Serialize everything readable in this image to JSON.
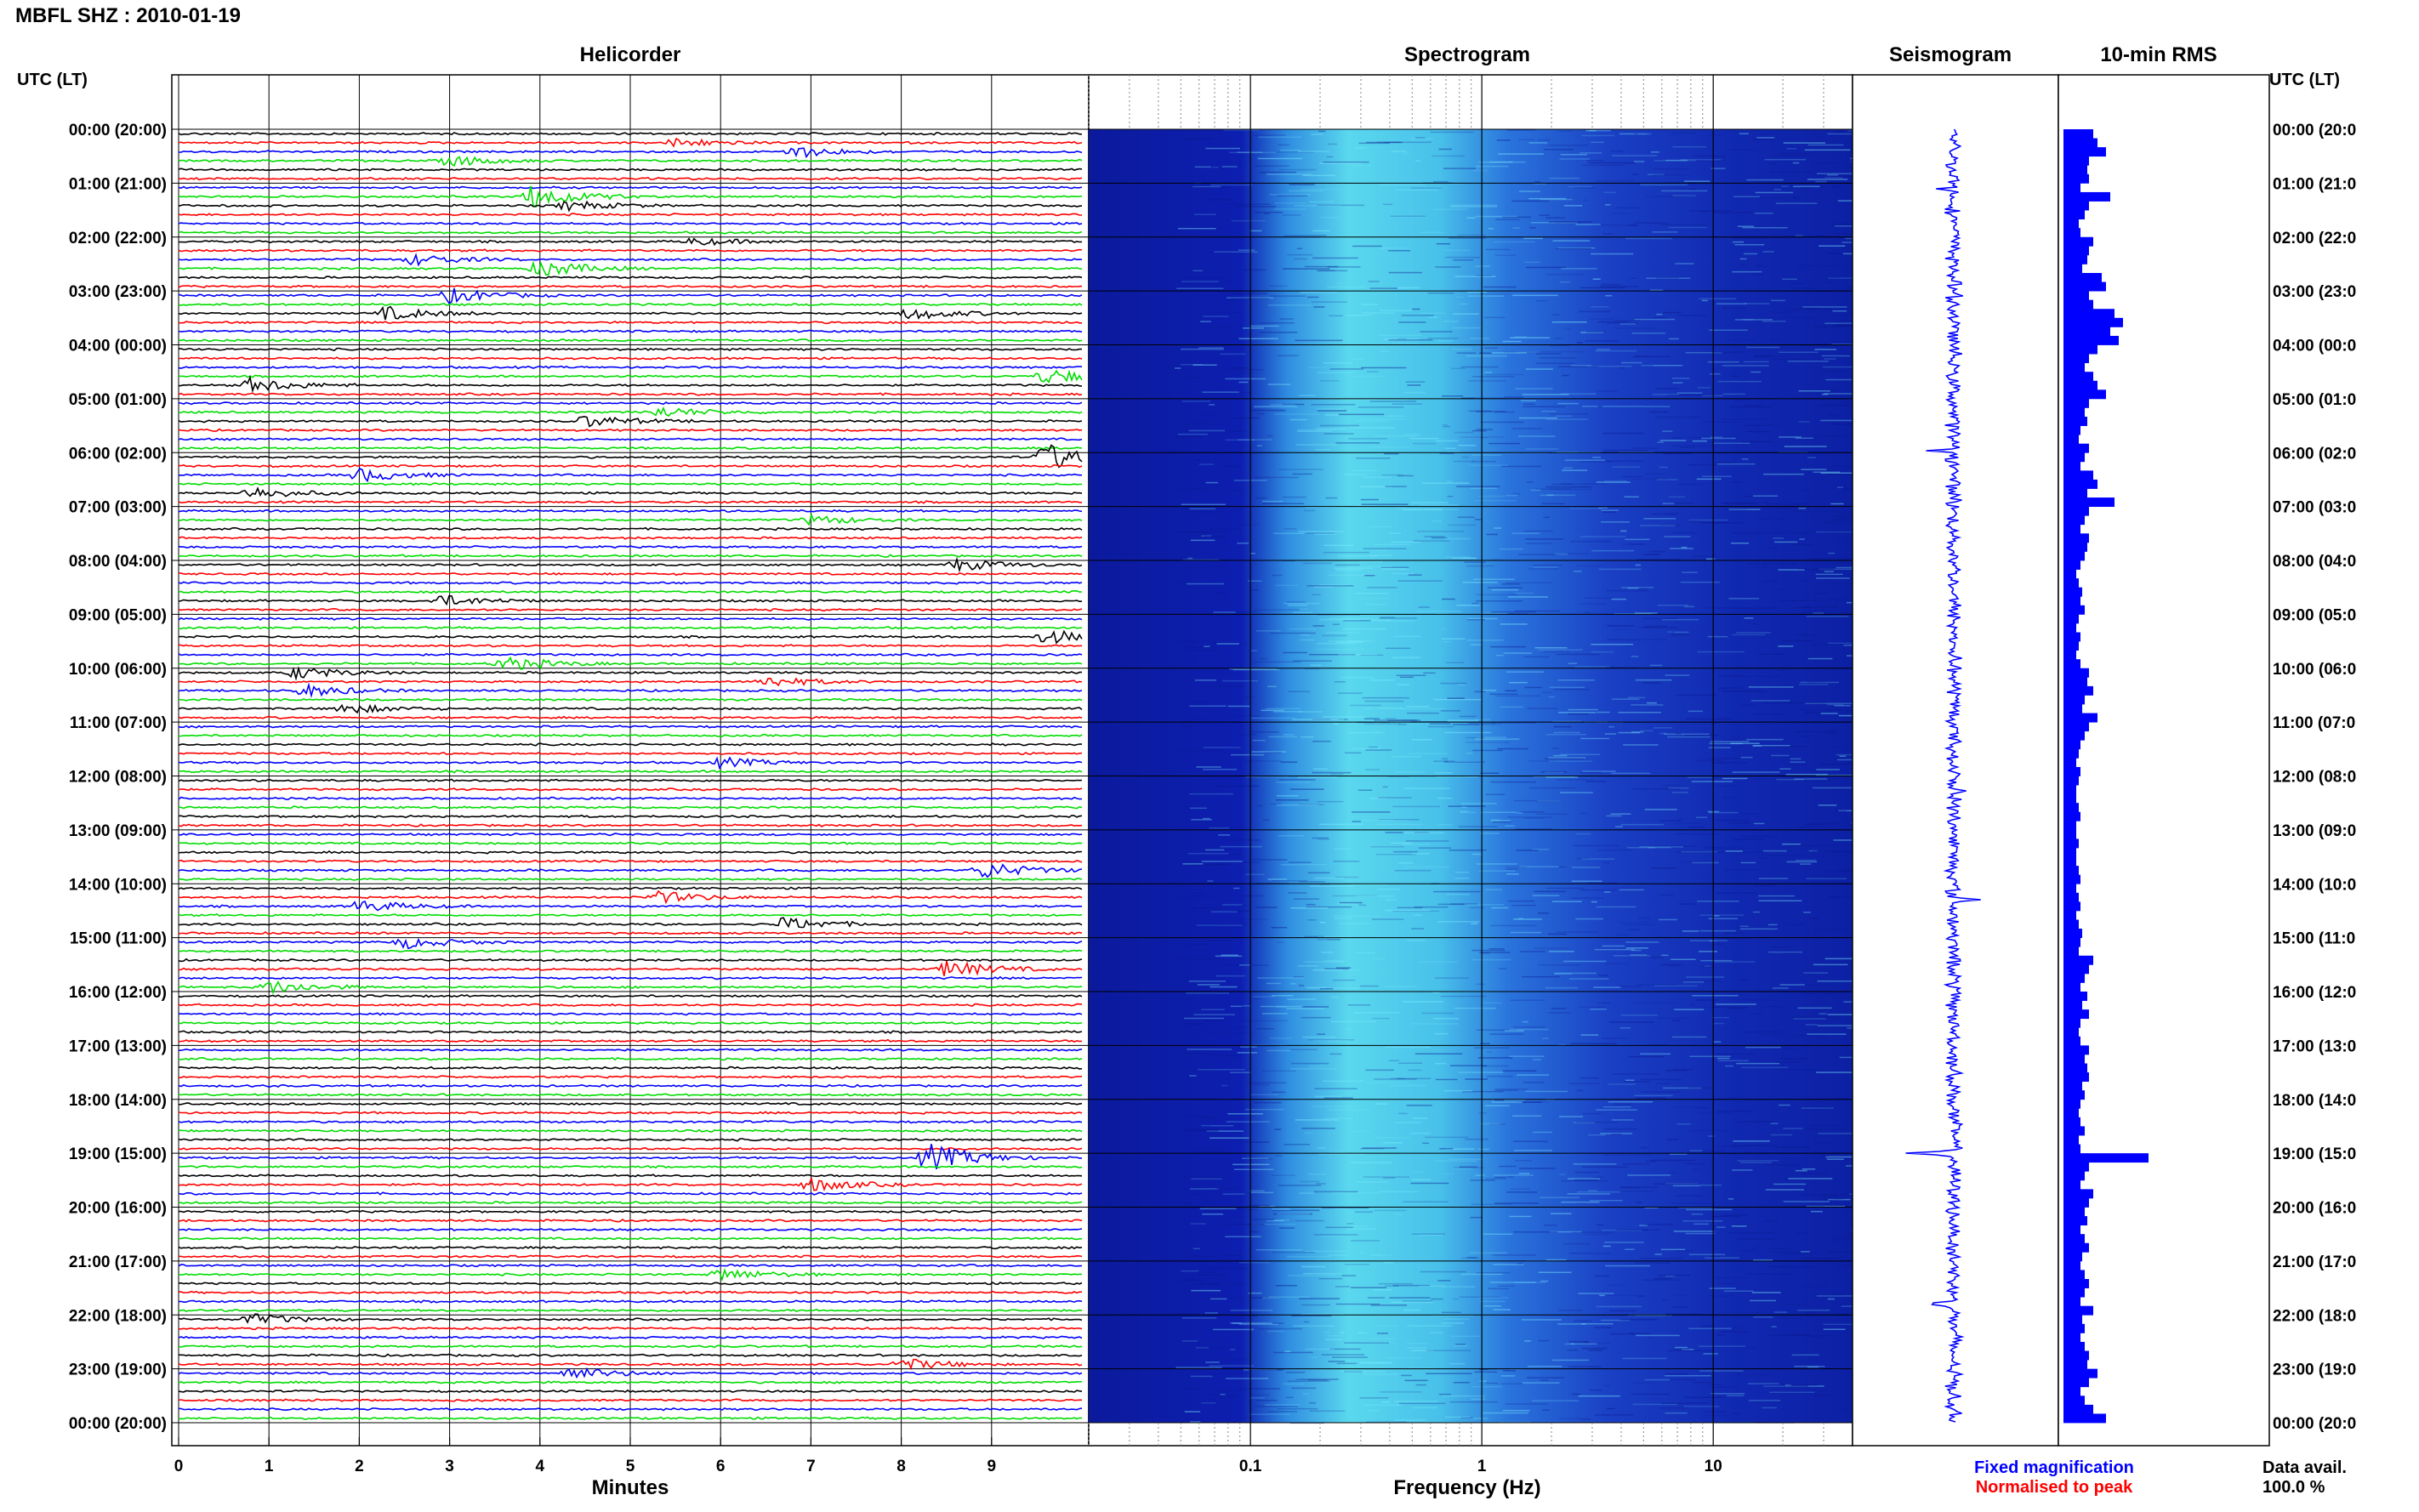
{
  "title": "MBFL SHZ : 2010-01-19",
  "panels": {
    "helicorder": "Helicorder",
    "spectrogram": "Spectrogram",
    "seismogram": "Seismogram",
    "rms": "10-min RMS"
  },
  "axis": {
    "time_header_left": "UTC (LT)",
    "time_header_right": "UTC (LT)",
    "minutes_label": "Minutes",
    "frequency_label": "Frequency (Hz)",
    "minute_ticks": [
      "0",
      "1",
      "2",
      "3",
      "4",
      "5",
      "6",
      "7",
      "8",
      "9"
    ],
    "frequency_ticks": [
      "0.1",
      "1",
      "10"
    ]
  },
  "time_labels": [
    "00:00 (20:00)",
    "01:00 (21:00)",
    "02:00 (22:00)",
    "03:00 (23:00)",
    "04:00 (00:00)",
    "05:00 (01:00)",
    "06:00 (02:00)",
    "07:00 (03:00)",
    "08:00 (04:00)",
    "09:00 (05:00)",
    "10:00 (06:00)",
    "11:00 (07:00)",
    "12:00 (08:00)",
    "13:00 (09:00)",
    "14:00 (10:00)",
    "15:00 (11:00)",
    "16:00 (12:00)",
    "17:00 (13:00)",
    "18:00 (14:00)",
    "19:00 (15:00)",
    "20:00 (16:00)",
    "21:00 (17:00)",
    "22:00 (18:00)",
    "23:00 (19:00)",
    "00:00 (20:00)"
  ],
  "footer": {
    "fixed_magnification": "Fixed magnification",
    "normalised_to_peak": "Normalised to peak",
    "data_avail_label": "Data avail.",
    "data_avail_value": "100.0 %"
  },
  "colors": {
    "trace_cycle": [
      "#000000",
      "#ff0000",
      "#0000ff",
      "#00dd00"
    ],
    "spectrogram_base": "#0a1aa8",
    "spectrogram_peak": "#59e0f0",
    "seismogram": "#0000ff",
    "rms_bar": "#0000ff",
    "fixed_magnification": "#0000ff",
    "normalised_to_peak": "#ff0000"
  },
  "chart_data": [
    {
      "type": "line",
      "name": "Helicorder",
      "xlabel": "Minutes",
      "xlim": [
        0,
        10
      ],
      "rows": 144,
      "minutes_per_row": 10,
      "events": [
        {
          "row": 1,
          "minute": 5.5,
          "amp": 0.35
        },
        {
          "row": 2,
          "minute": 6.8,
          "amp": 0.5
        },
        {
          "row": 3,
          "minute": 3.0,
          "amp": 0.45
        },
        {
          "row": 7,
          "minute": 3.9,
          "amp": 1.0
        },
        {
          "row": 8,
          "minute": 4.3,
          "amp": 0.4
        },
        {
          "row": 12,
          "minute": 5.7,
          "amp": 0.3
        },
        {
          "row": 14,
          "minute": 2.6,
          "amp": 0.45
        },
        {
          "row": 15,
          "minute": 4.0,
          "amp": 0.7
        },
        {
          "row": 18,
          "minute": 3.0,
          "amp": 0.6
        },
        {
          "row": 20,
          "minute": 2.3,
          "amp": 0.55
        },
        {
          "row": 20,
          "minute": 8.1,
          "amp": 0.5
        },
        {
          "row": 27,
          "minute": 9.6,
          "amp": 0.65
        },
        {
          "row": 28,
          "minute": 0.8,
          "amp": 0.6
        },
        {
          "row": 31,
          "minute": 5.3,
          "amp": 0.45
        },
        {
          "row": 32,
          "minute": 4.5,
          "amp": 0.5
        },
        {
          "row": 36,
          "minute": 9.6,
          "amp": 1.2
        },
        {
          "row": 38,
          "minute": 2.0,
          "amp": 0.55
        },
        {
          "row": 40,
          "minute": 0.8,
          "amp": 0.5
        },
        {
          "row": 43,
          "minute": 7.0,
          "amp": 0.4
        },
        {
          "row": 48,
          "minute": 8.6,
          "amp": 0.5
        },
        {
          "row": 52,
          "minute": 2.9,
          "amp": 0.45
        },
        {
          "row": 56,
          "minute": 9.6,
          "amp": 0.6
        },
        {
          "row": 59,
          "minute": 3.6,
          "amp": 0.6
        },
        {
          "row": 60,
          "minute": 1.3,
          "amp": 0.5
        },
        {
          "row": 61,
          "minute": 6.5,
          "amp": 0.45
        },
        {
          "row": 62,
          "minute": 1.4,
          "amp": 0.5
        },
        {
          "row": 64,
          "minute": 1.8,
          "amp": 0.45
        },
        {
          "row": 70,
          "minute": 6.0,
          "amp": 0.4
        },
        {
          "row": 82,
          "minute": 8.9,
          "amp": 0.7
        },
        {
          "row": 85,
          "minute": 5.3,
          "amp": 0.5
        },
        {
          "row": 86,
          "minute": 2.0,
          "amp": 0.5
        },
        {
          "row": 88,
          "minute": 6.7,
          "amp": 0.55
        },
        {
          "row": 90,
          "minute": 2.5,
          "amp": 0.5
        },
        {
          "row": 93,
          "minute": 8.5,
          "amp": 0.7
        },
        {
          "row": 95,
          "minute": 1.0,
          "amp": 0.55
        },
        {
          "row": 114,
          "minute": 8.3,
          "amp": 1.2
        },
        {
          "row": 117,
          "minute": 7.0,
          "amp": 0.55
        },
        {
          "row": 127,
          "minute": 6.0,
          "amp": 0.5
        },
        {
          "row": 132,
          "minute": 0.8,
          "amp": 0.45
        },
        {
          "row": 137,
          "minute": 8.0,
          "amp": 0.5
        },
        {
          "row": 138,
          "minute": 4.3,
          "amp": 0.55
        }
      ]
    },
    {
      "type": "heatmap",
      "name": "Spectrogram",
      "xlabel": "Frequency (Hz)",
      "x_scale": "log",
      "xlim": [
        0.02,
        40
      ],
      "peak_band_hz": [
        0.25,
        3.0
      ],
      "hours": 24
    },
    {
      "type": "line",
      "name": "Seismogram",
      "hours": 24,
      "spikes": [
        {
          "hour": 1.1,
          "amp": 0.9
        },
        {
          "hour": 6.0,
          "amp": 1.0
        },
        {
          "hour": 12.3,
          "amp": 0.45
        },
        {
          "hour": 14.3,
          "amp": 0.45
        },
        {
          "hour": 19.0,
          "amp": 0.75
        },
        {
          "hour": 21.8,
          "amp": 0.35
        }
      ]
    },
    {
      "type": "bar",
      "name": "10-min RMS",
      "orientation": "horizontal",
      "hours": 24,
      "values": [
        0.35,
        0.4,
        0.5,
        0.3,
        0.28,
        0.3,
        0.2,
        0.55,
        0.3,
        0.25,
        0.18,
        0.2,
        0.35,
        0.3,
        0.28,
        0.22,
        0.45,
        0.5,
        0.3,
        0.35,
        0.6,
        0.7,
        0.55,
        0.65,
        0.4,
        0.3,
        0.25,
        0.35,
        0.4,
        0.5,
        0.3,
        0.25,
        0.28,
        0.2,
        0.18,
        0.3,
        0.25,
        0.2,
        0.35,
        0.4,
        0.28,
        0.6,
        0.3,
        0.25,
        0.2,
        0.3,
        0.28,
        0.25,
        0.2,
        0.15,
        0.18,
        0.22,
        0.2,
        0.25,
        0.18,
        0.15,
        0.2,
        0.18,
        0.15,
        0.2,
        0.3,
        0.28,
        0.35,
        0.25,
        0.22,
        0.4,
        0.3,
        0.25,
        0.2,
        0.18,
        0.15,
        0.2,
        0.18,
        0.15,
        0.15,
        0.18,
        0.2,
        0.15,
        0.15,
        0.18,
        0.15,
        0.15,
        0.18,
        0.2,
        0.15,
        0.18,
        0.2,
        0.15,
        0.18,
        0.22,
        0.2,
        0.18,
        0.35,
        0.3,
        0.25,
        0.2,
        0.28,
        0.22,
        0.3,
        0.2,
        0.18,
        0.2,
        0.3,
        0.25,
        0.28,
        0.3,
        0.22,
        0.25,
        0.2,
        0.18,
        0.2,
        0.25,
        0.18,
        0.2,
        1.0,
        0.3,
        0.25,
        0.2,
        0.35,
        0.3,
        0.25,
        0.28,
        0.2,
        0.25,
        0.3,
        0.22,
        0.2,
        0.25,
        0.3,
        0.25,
        0.2,
        0.35,
        0.22,
        0.25,
        0.2,
        0.25,
        0.3,
        0.28,
        0.4,
        0.3,
        0.2,
        0.25,
        0.35,
        0.5
      ]
    }
  ]
}
